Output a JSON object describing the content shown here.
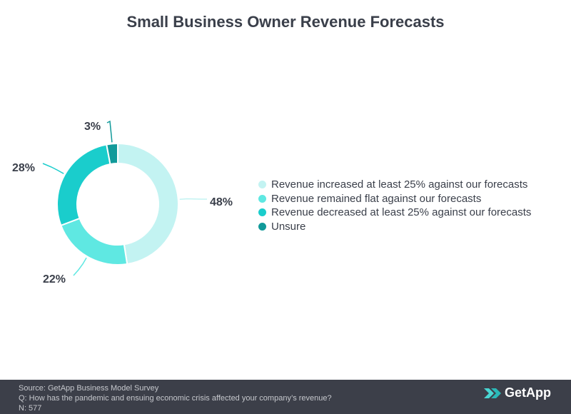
{
  "title": "Small Business Owner Revenue Forecasts",
  "chart_data": {
    "type": "pie",
    "donut": true,
    "title": "Small Business Owner Revenue Forecasts",
    "labels": [
      "Revenue increased at least 25% against our forecasts",
      "Revenue remained flat against our forecasts",
      "Revenue decreased at least 25% against our forecasts",
      "Unsure"
    ],
    "values": [
      48,
      22,
      28,
      3
    ],
    "value_labels": [
      "48%",
      "22%",
      "28%",
      "3%"
    ],
    "colors": [
      "#c3f3f2",
      "#5fe8e2",
      "#1acdcc",
      "#119a9a"
    ],
    "legend_position": "right"
  },
  "footer": {
    "source": "Source: GetApp Business Model Survey",
    "question": "Q: How has the pandemic and ensuing economic crisis affected your company’s revenue?",
    "n": "N: 577",
    "logo_text": "GetApp"
  }
}
